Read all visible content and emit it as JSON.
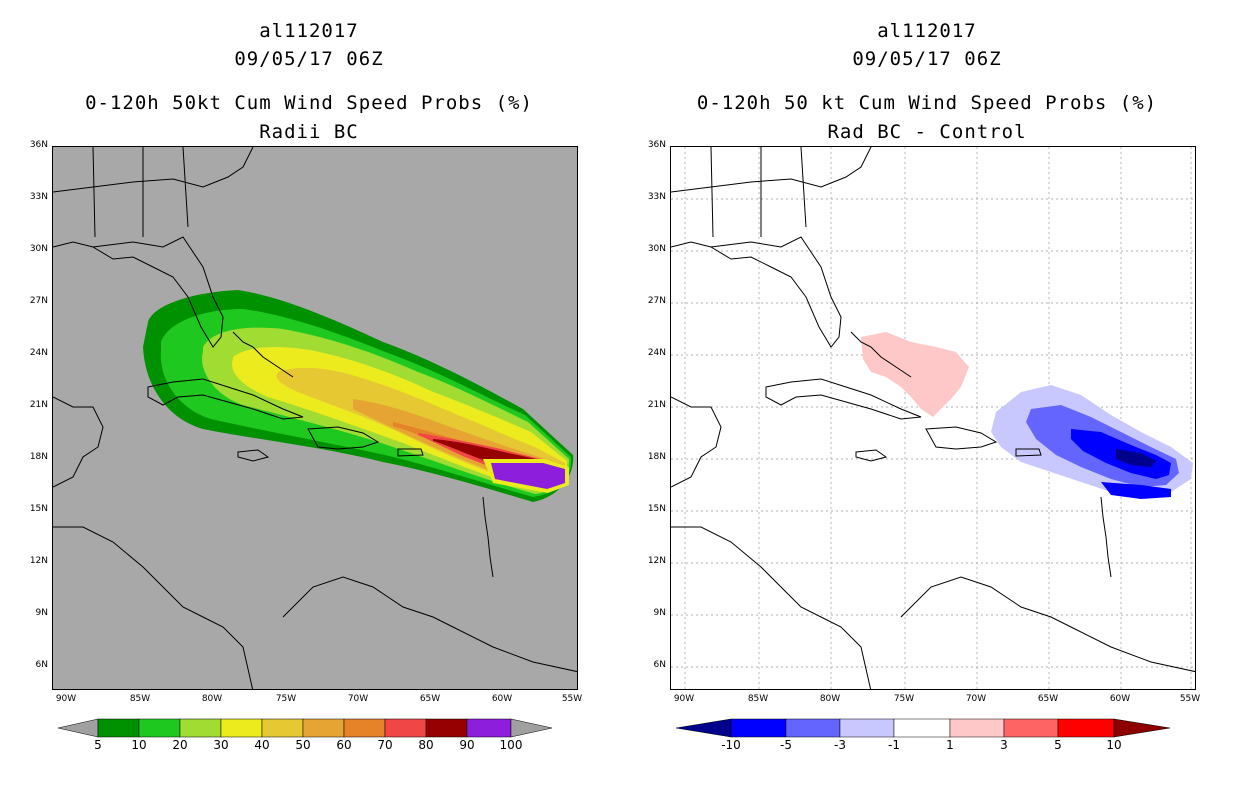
{
  "left": {
    "title_line1": "al112017",
    "title_line2": "09/05/17 06Z",
    "title_line3": "0-120h 50kt Cum Wind Speed Probs (%)",
    "title_line4": "Radii BC",
    "colorbar": {
      "labels": [
        "5",
        "10",
        "20",
        "30",
        "40",
        "50",
        "60",
        "70",
        "80",
        "90",
        "100"
      ],
      "colors": [
        "#009100",
        "#1ec81e",
        "#a0dc32",
        "#ebeb1e",
        "#e6c832",
        "#e6a532",
        "#e68228",
        "#f04646",
        "#960000",
        "#8c1edc"
      ],
      "arrow_color": "#a0a0a0"
    },
    "background": "#a8a8a8"
  },
  "right": {
    "title_line1": "al112017",
    "title_line2": "09/05/17 06Z",
    "title_line3": "0-120h 50 kt Cum Wind Speed Probs (%)",
    "title_line4": "Rad BC - Control",
    "colorbar": {
      "labels": [
        "-10",
        "-5",
        "-3",
        "-1",
        "1",
        "3",
        "5",
        "10"
      ],
      "colors": [
        "#00008c",
        "#0000ff",
        "#6464ff",
        "#c8c8ff",
        "#ffffff",
        "#ffc8c8",
        "#ff6464",
        "#ff0000",
        "#8c0000"
      ]
    },
    "background": "#ffffff"
  },
  "axes": {
    "lat_labels": [
      "36N",
      "33N",
      "30N",
      "27N",
      "24N",
      "21N",
      "18N",
      "15N",
      "12N",
      "9N",
      "6N"
    ],
    "lon_labels": [
      "90W",
      "85W",
      "80W",
      "75W",
      "70W",
      "65W",
      "60W",
      "55W"
    ]
  }
}
